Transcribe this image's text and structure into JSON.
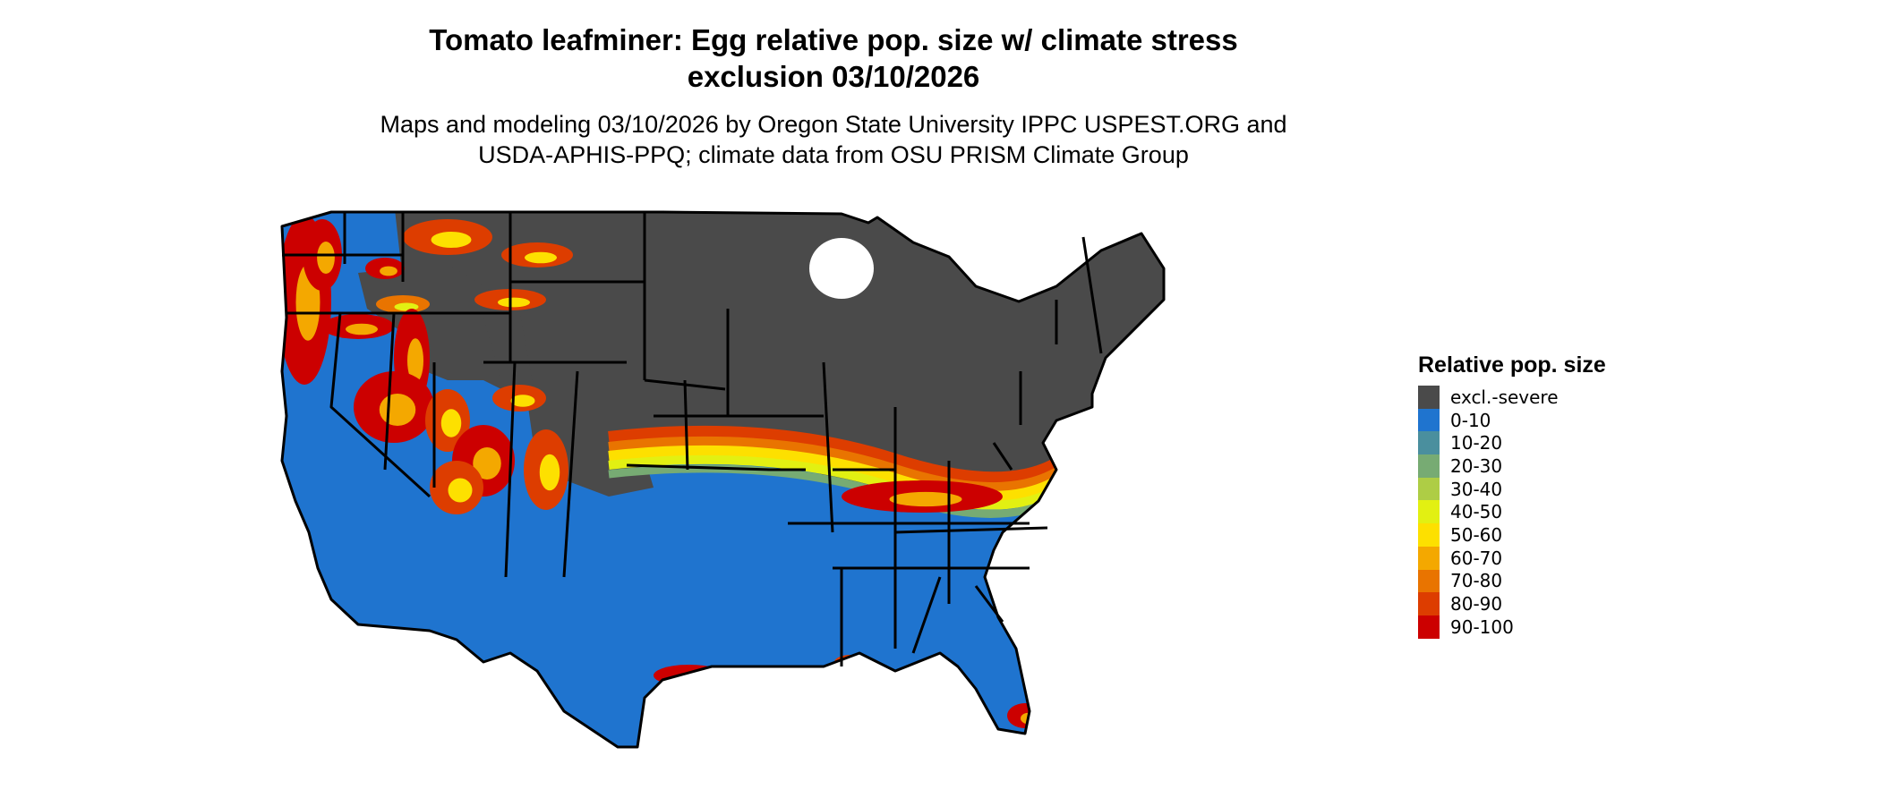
{
  "title_line1": "Tomato leafminer: Egg relative pop. size w/ climate stress",
  "title_line2": "exclusion 03/10/2026",
  "subtitle_line1": "Maps and modeling 03/10/2026 by Oregon State University IPPC USPEST.ORG and",
  "subtitle_line2": "USDA-APHIS-PPQ; climate data from OSU PRISM Climate Group",
  "legend": {
    "title": "Relative pop. size",
    "items": [
      {
        "label": "excl.-severe",
        "color": "#4a4a4a"
      },
      {
        "label": "0-10",
        "color": "#1f74cf"
      },
      {
        "label": "10-20",
        "color": "#4a8f9e"
      },
      {
        "label": "20-30",
        "color": "#77ab73"
      },
      {
        "label": "30-40",
        "color": "#aecd45"
      },
      {
        "label": "40-50",
        "color": "#e2f012"
      },
      {
        "label": "50-60",
        "color": "#fde000"
      },
      {
        "label": "60-70",
        "color": "#f4a800"
      },
      {
        "label": "70-80",
        "color": "#e97400"
      },
      {
        "label": "80-90",
        "color": "#dd3d00"
      },
      {
        "label": "90-100",
        "color": "#cc0000"
      }
    ]
  }
}
